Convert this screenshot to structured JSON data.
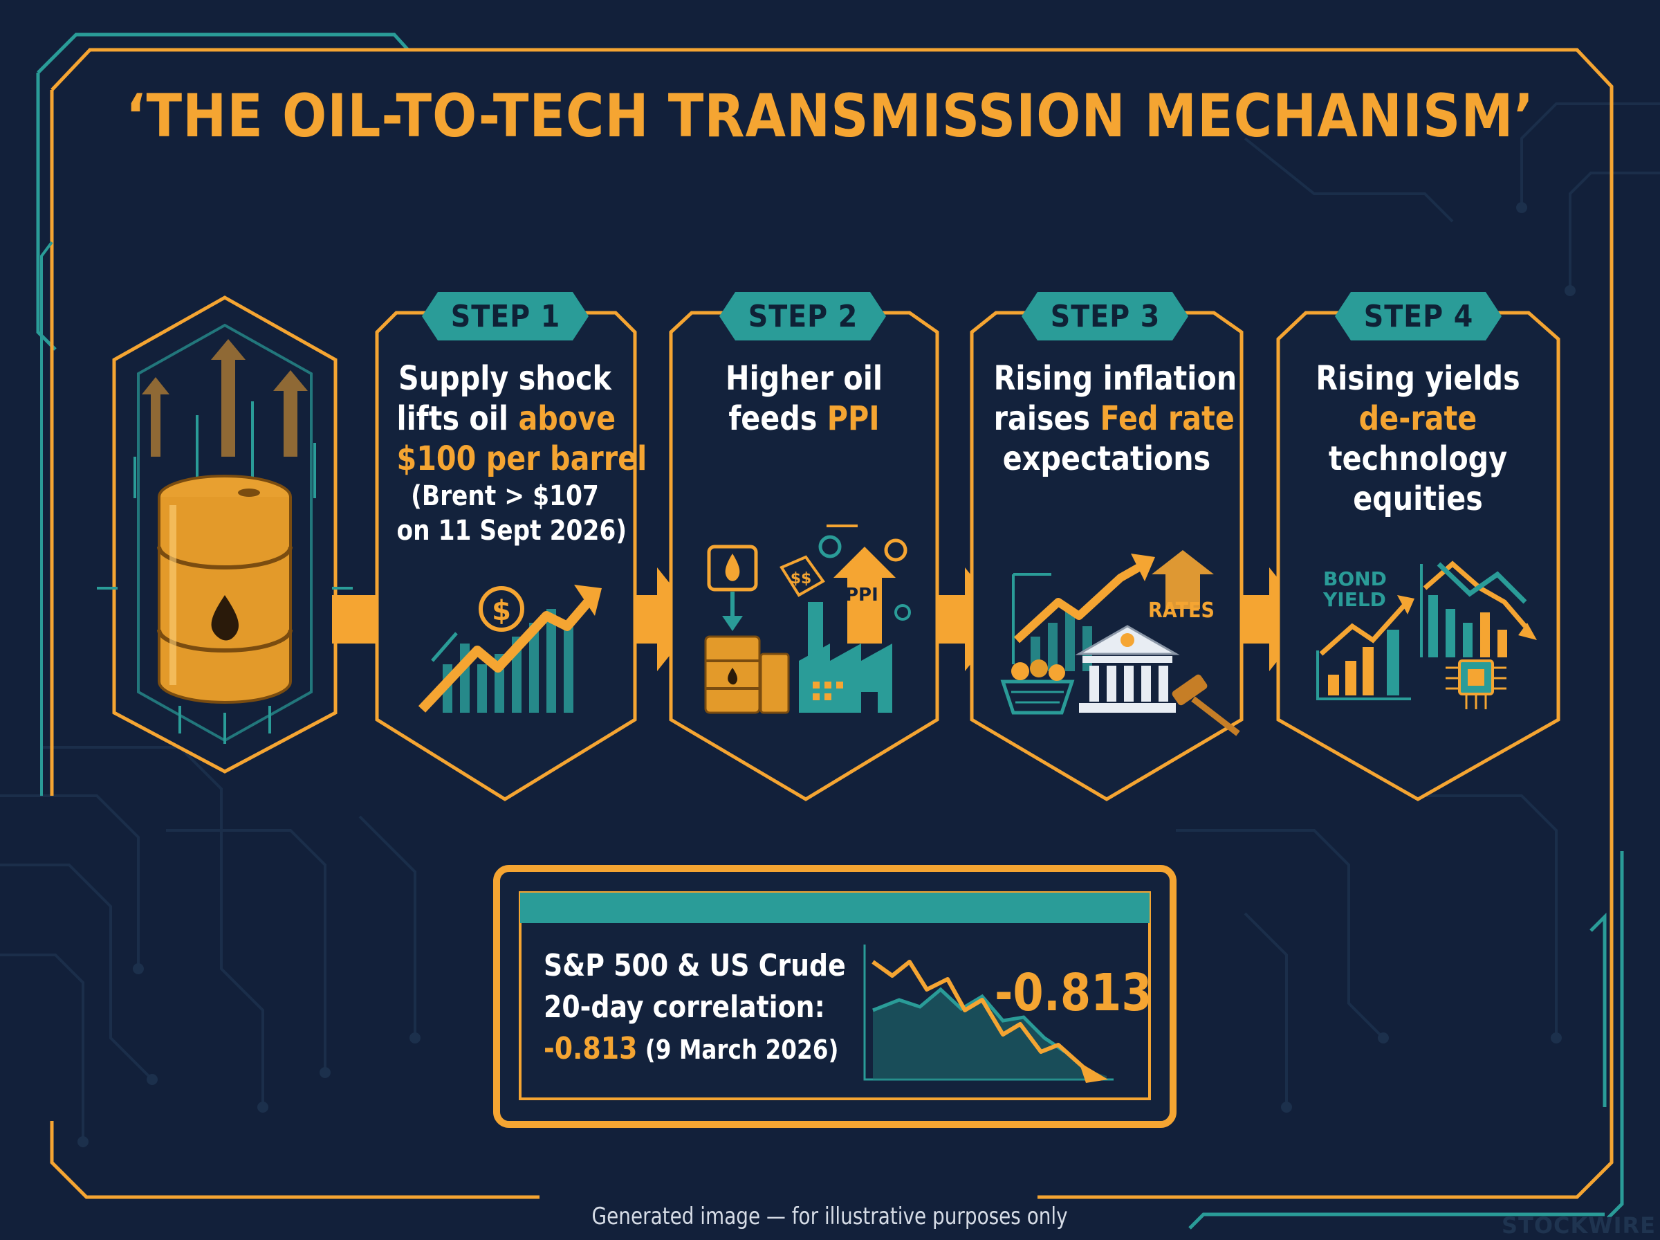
{
  "title": "‘THE OIL-TO-TECH TRANSMISSION MECHANISM’",
  "colors": {
    "background": "#12203a",
    "accent_orange": "#f5a532",
    "accent_teal": "#2a9c98",
    "text": "#ffffff"
  },
  "steps": [
    {
      "badge": "STEP 1",
      "lines": [
        {
          "plain": "Supply shock",
          "highlight": ""
        },
        {
          "plain": "lifts oil ",
          "highlight": "above"
        },
        {
          "plain": "",
          "highlight": "$100 per barrel"
        }
      ],
      "note": [
        "(Brent > $107",
        "on 11 Sept 2026)"
      ],
      "icon": "rising-chart-dollar-icon"
    },
    {
      "badge": "STEP 2",
      "lines": [
        {
          "plain": "Higher oil",
          "highlight": ""
        },
        {
          "plain": "feeds ",
          "highlight": "PPI"
        }
      ],
      "note": [],
      "icon": "factory-ppi-icon",
      "icon_label": "PPI"
    },
    {
      "badge": "STEP 3",
      "lines": [
        {
          "plain": "Rising inflation",
          "highlight": ""
        },
        {
          "plain": "raises ",
          "highlight": "Fed rate"
        },
        {
          "plain": "expectations",
          "highlight": ""
        }
      ],
      "note": [],
      "icon": "bank-rates-icon",
      "icon_label": "RATES"
    },
    {
      "badge": "STEP 4",
      "lines": [
        {
          "plain": "Rising yields",
          "highlight": ""
        },
        {
          "plain": "",
          "highlight": "de-rate"
        },
        {
          "plain": "technology",
          "highlight": ""
        },
        {
          "plain": "equities",
          "highlight": ""
        }
      ],
      "note": [],
      "icon": "bond-yield-chip-icon",
      "icon_label": [
        "BOND",
        "YIELD"
      ]
    }
  ],
  "source_icon": "oil-barrel-icon",
  "correlation": {
    "line1": "S&P 500 & US Crude",
    "line2": "20-day correlation:",
    "value": "-0.813",
    "date": " (9 March 2026)",
    "big_value": "-0.813",
    "icon": "falling-line-chart-icon"
  },
  "footer": "Generated image — for illustrative purposes only",
  "brand": "STOCKWIRE"
}
